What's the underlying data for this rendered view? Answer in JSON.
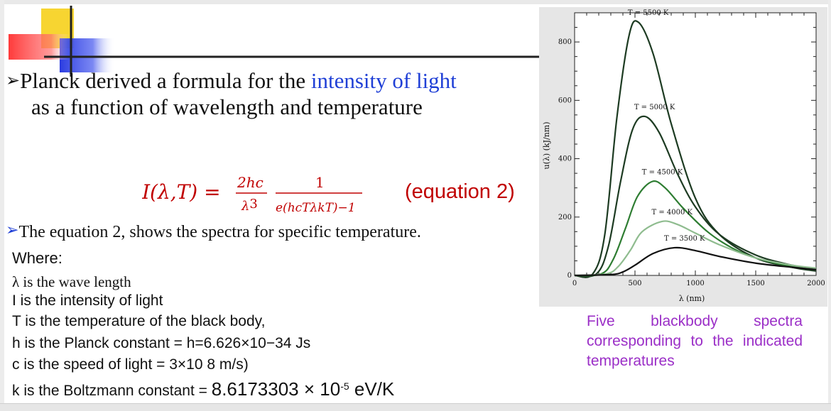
{
  "slide": {
    "bullet1_line1_prefix": "Planck derived a formula  for the ",
    "bullet1_highlight": "intensity of light",
    "bullet1_line2": "as a function of  wavelength and  temperature",
    "formula": {
      "lhs": "I(λ,T) =",
      "num1": "2hc",
      "den1": "λ",
      "den1_exp": "3",
      "num2": "1",
      "den2": "e(hcTλkT)−1"
    },
    "equation_label": "(equation 2)",
    "bullet2": "The equation 2, shows the spectra for  specific temperature.",
    "where_title": "Where:",
    "definitions": {
      "lambda": "λ is the wave length",
      "intensity": "I is the intensity of light",
      "temperature": "T is the temperature of the black body,",
      "planck": "h is the Planck constant = h=6.626×10−34 Js",
      "light_speed": "c is the speed of light = 3×10 8 m/s)",
      "boltzmann_prefix": "k is the Boltzmann constant = ",
      "boltzmann_value": "8.6173303 × 10",
      "boltzmann_exp": "-5",
      "boltzmann_unit": " eV/K"
    },
    "caption": "Five blackbody spectra corresponding to the indicated temperatures"
  },
  "chart_data": {
    "type": "line",
    "xlabel": "λ (nm)",
    "ylabel": "u(λ) (kJ/nm)",
    "xlim": [
      0,
      2000
    ],
    "ylim": [
      0,
      900
    ],
    "x_ticks": [
      0,
      500,
      1000,
      1500,
      2000
    ],
    "y_ticks": [
      0,
      200,
      400,
      600,
      800
    ],
    "grid": false,
    "series": [
      {
        "name": "T = 5500 K",
        "color": "#1d3b22",
        "peak_x": 527,
        "x": [
          0,
          150,
          250,
          350,
          450,
          527,
          650,
          800,
          1000,
          1200,
          1500,
          1800,
          2000
        ],
        "values": [
          0,
          5,
          140,
          540,
          820,
          868,
          760,
          520,
          265,
          140,
          60,
          28,
          15
        ]
      },
      {
        "name": "T = 5000 K",
        "color": "#1d3b22",
        "peak_x": 580,
        "x": [
          0,
          180,
          280,
          380,
          480,
          580,
          700,
          850,
          1000,
          1200,
          1500,
          1800,
          2000
        ],
        "values": [
          0,
          5,
          100,
          320,
          500,
          545,
          490,
          350,
          235,
          140,
          70,
          35,
          22
        ]
      },
      {
        "name": "T = 4500 K",
        "color": "#2e7d32",
        "peak_x": 644,
        "x": [
          0,
          220,
          320,
          420,
          520,
          644,
          750,
          900,
          1100,
          1300,
          1500,
          1800,
          2000
        ],
        "values": [
          0,
          5,
          55,
          160,
          270,
          322,
          300,
          230,
          150,
          95,
          60,
          30,
          20
        ]
      },
      {
        "name": "T = 4000 K",
        "color": "#8fbc8f",
        "peak_x": 725,
        "x": [
          0,
          260,
          360,
          460,
          560,
          725,
          850,
          1000,
          1200,
          1500,
          1800,
          2000
        ],
        "values": [
          0,
          5,
          30,
          85,
          150,
          185,
          175,
          145,
          105,
          60,
          35,
          25
        ]
      },
      {
        "name": "T = 3500 K",
        "color": "#111111",
        "peak_x": 828,
        "x": [
          0,
          300,
          400,
          500,
          650,
          828,
          1000,
          1200,
          1500,
          1800,
          2000
        ],
        "values": [
          0,
          3,
          12,
          35,
          75,
          95,
          85,
          65,
          42,
          28,
          20
        ]
      }
    ]
  }
}
